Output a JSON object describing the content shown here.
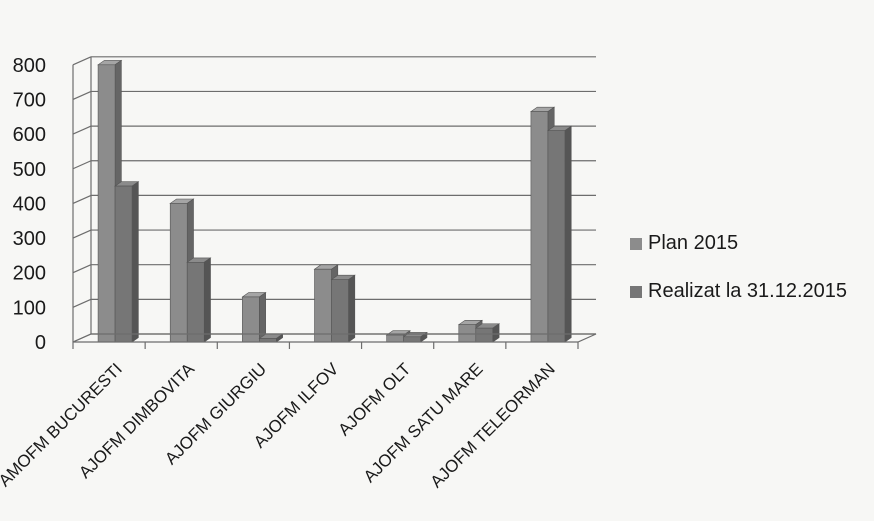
{
  "chart_data": {
    "type": "bar",
    "categories": [
      "AMOFM BUCURESTI",
      "AJOFM DIMBOVITA",
      "AJOFM GIURGIU",
      "AJOFM ILFOV",
      "AJOFM OLT",
      "AJOFM SATU MARE",
      "AJOFM TELEORMAN"
    ],
    "series": [
      {
        "name": "Plan 2015",
        "values": [
          800,
          400,
          130,
          210,
          20,
          50,
          665
        ],
        "color": "#8c8c8c"
      },
      {
        "name": "Realizat la 31.12.2015",
        "values": [
          450,
          230,
          10,
          180,
          15,
          40,
          610
        ],
        "color": "#767676"
      }
    ],
    "ylim": [
      0,
      800
    ],
    "yticks": [
      0,
      100,
      200,
      300,
      400,
      500,
      600,
      700,
      800
    ],
    "grid": true,
    "legend_position": "right",
    "style": "3d-clustered-column"
  }
}
